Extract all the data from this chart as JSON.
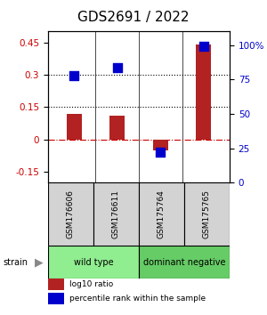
{
  "title": "GDS2691 / 2022",
  "samples": [
    "GSM176606",
    "GSM176611",
    "GSM175764",
    "GSM175765"
  ],
  "log10_ratio": [
    0.12,
    0.11,
    -0.05,
    0.44
  ],
  "percentile_rank": [
    0.78,
    0.84,
    0.22,
    0.99
  ],
  "ylim_left": [
    -0.2,
    0.5
  ],
  "ylim_right": [
    0,
    1.1
  ],
  "yticks_left": [
    -0.15,
    0,
    0.15,
    0.3,
    0.45
  ],
  "yticks_right": [
    0,
    0.25,
    0.5,
    0.75,
    1.0
  ],
  "ytick_labels_left": [
    "-0.15",
    "0",
    "0.15",
    "0.3",
    "0.45"
  ],
  "ytick_labels_right": [
    "0",
    "25",
    "50",
    "75",
    "100%"
  ],
  "hlines_y": [
    0.3,
    0.15
  ],
  "zero_line_y": 0,
  "bar_color": "#b22222",
  "dot_color": "#0000cc",
  "bar_width": 0.35,
  "dot_size": 55,
  "groups": [
    {
      "label": "wild type",
      "n": 2,
      "color": "#90ee90"
    },
    {
      "label": "dominant negative",
      "n": 2,
      "color": "#66cc66"
    }
  ],
  "strain_label": "strain",
  "legend_items": [
    {
      "color": "#b22222",
      "label": "log10 ratio"
    },
    {
      "color": "#0000cc",
      "label": "percentile rank within the sample"
    }
  ],
  "title_fontsize": 11,
  "tick_fontsize": 7.5,
  "label_fontsize": 8,
  "ax_background": "#ffffff"
}
